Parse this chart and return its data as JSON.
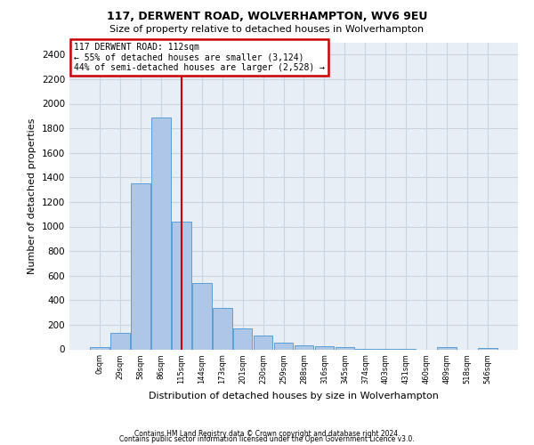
{
  "title": "117, DERWENT ROAD, WOLVERHAMPTON, WV6 9EU",
  "subtitle": "Size of property relative to detached houses in Wolverhampton",
  "xlabel": "Distribution of detached houses by size in Wolverhampton",
  "ylabel": "Number of detached properties",
  "footer_line1": "Contains HM Land Registry data © Crown copyright and database right 2024.",
  "footer_line2": "Contains public sector information licensed under the Open Government Licence v3.0.",
  "bar_values": [
    15,
    135,
    1355,
    1890,
    1040,
    540,
    335,
    170,
    110,
    55,
    35,
    25,
    15,
    5,
    5,
    5,
    0,
    15,
    0,
    10
  ],
  "bin_labels": [
    "0sqm",
    "29sqm",
    "58sqm",
    "86sqm",
    "115sqm",
    "144sqm",
    "173sqm",
    "201sqm",
    "230sqm",
    "259sqm",
    "288sqm",
    "316sqm",
    "345sqm",
    "374sqm",
    "403sqm",
    "431sqm",
    "460sqm",
    "489sqm",
    "518sqm",
    "546sqm"
  ],
  "bar_color": "#aec6e8",
  "bar_edgecolor": "#5a9fd4",
  "marker_bin_index": 4,
  "annotation_line1": "117 DERWENT ROAD: 112sqm",
  "annotation_line2": "← 55% of detached houses are smaller (3,124)",
  "annotation_line3": "44% of semi-detached houses are larger (2,528) →",
  "annotation_box_facecolor": "#ffffff",
  "annotation_box_edgecolor": "#cc0000",
  "marker_line_color": "#cc0000",
  "ylim_max": 2500,
  "yticks": [
    0,
    200,
    400,
    600,
    800,
    1000,
    1200,
    1400,
    1600,
    1800,
    2000,
    2200,
    2400
  ],
  "grid_color": "#c8d4e0",
  "bg_color": "#e8eef5"
}
